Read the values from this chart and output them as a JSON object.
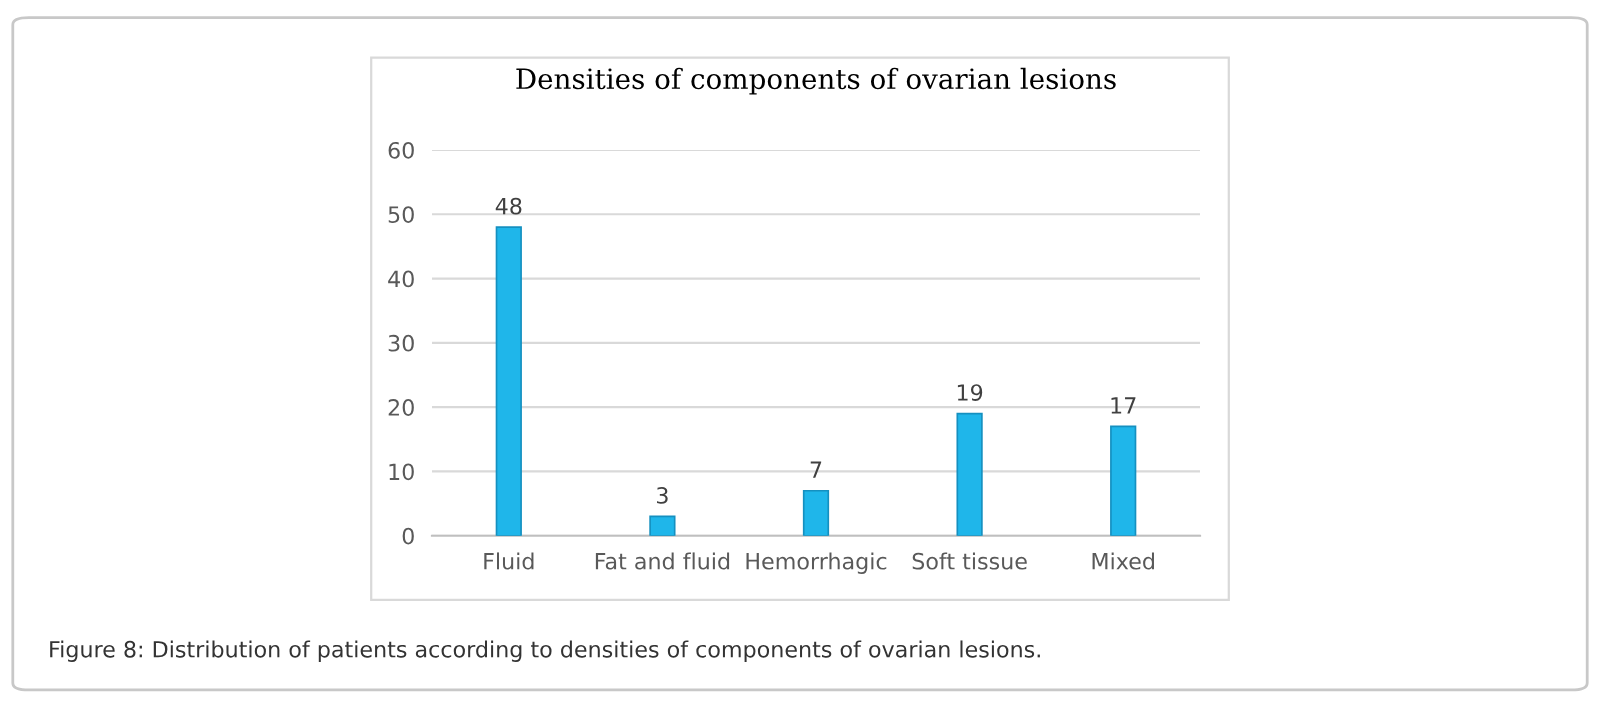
{
  "chart_data": {
    "type": "bar",
    "title": "Densities of components of ovarian lesions",
    "categories": [
      "Fluid",
      "Fat and fluid",
      "Hemorrhagic",
      "Soft tissue",
      "Mixed"
    ],
    "values": [
      48,
      3,
      7,
      19,
      17
    ],
    "color": "#1fb6ea",
    "ylim": [
      0,
      60
    ],
    "yticks": [
      0,
      10,
      20,
      30,
      40,
      50,
      60
    ],
    "grid": "y",
    "data_labels": true,
    "annotations": [
      "Figure 8: Distribution of patients according to densities of components of ovarian lesions."
    ]
  }
}
